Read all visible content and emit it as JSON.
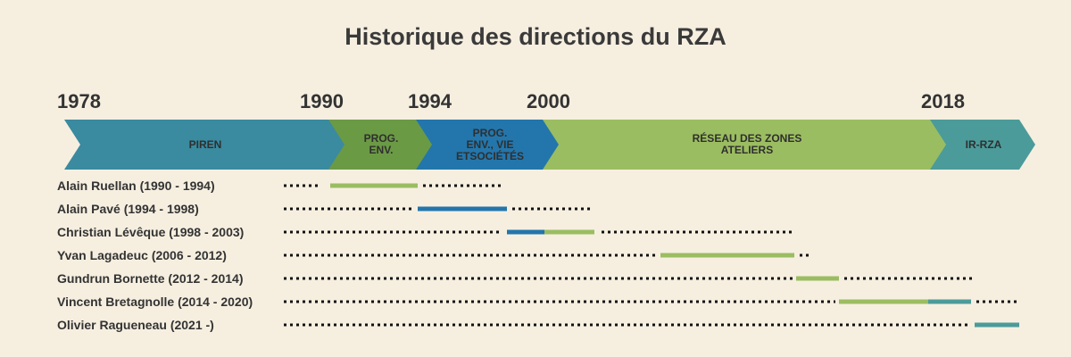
{
  "title": "Historique des directions du RZA",
  "years": [
    {
      "id": "y1978",
      "label": "1978"
    },
    {
      "id": "y1990",
      "label": "1990"
    },
    {
      "id": "y1994",
      "label": "1994"
    },
    {
      "id": "y2000",
      "label": "2000"
    },
    {
      "id": "y2018",
      "label": "2018"
    }
  ],
  "phases": [
    {
      "id": "piren",
      "label": "PIREN",
      "color": "#3a8aa0"
    },
    {
      "id": "prog-env",
      "label": "PROG.\nENV.",
      "color": "#6b9a45"
    },
    {
      "id": "prog-env-vie",
      "label": "PROG.\nENV., VIE\nETSOCIÉTÉS",
      "color": "#2376ac"
    },
    {
      "id": "reseau",
      "label": "RÉSEAU DES ZONES\nATELIERS",
      "color": "#9bbd61"
    },
    {
      "id": "ir-rza",
      "label": "IR-RZA",
      "color": "#4b9b9a"
    }
  ],
  "people": [
    {
      "name": "Alain Ruellan (1990 - 1994)"
    },
    {
      "name": "Alain Pavé (1994 - 1998)"
    },
    {
      "name": "Christian Lévêque (1998 - 2003)"
    },
    {
      "name": "Yvan Lagadeuc (2006 - 2012)"
    },
    {
      "name": "Gundrun Bornette (2012 - 2014)"
    },
    {
      "name": "Vincent Bretagnolle (2014 - 2020)"
    },
    {
      "name": "Olivier Ragueneau (2021 -)"
    }
  ],
  "colors": {
    "green": "#9bbd61",
    "blue": "#2376ac",
    "teal": "#4b9b9a",
    "dots": "#111111"
  }
}
